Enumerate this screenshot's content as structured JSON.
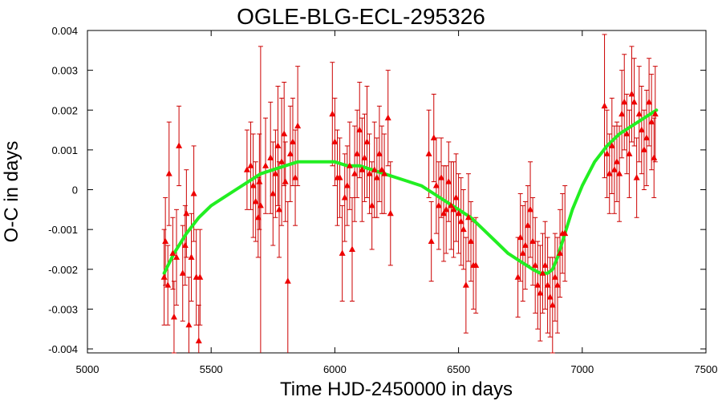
{
  "chart_data": {
    "type": "scatter",
    "title": "OGLE-BLG-ECL-295326",
    "xlabel": "Time HJD-2450000 in days",
    "ylabel": "O-C in days",
    "xlim": [
      5000,
      7500
    ],
    "ylim": [
      -0.0041,
      0.004
    ],
    "xticks": [
      5000,
      5500,
      6000,
      6500,
      7000,
      7500
    ],
    "xtick_labels": [
      "5000",
      "5500",
      "6000",
      "6500",
      "7000",
      "7500"
    ],
    "yticks": [
      -0.004,
      -0.003,
      -0.002,
      -0.001,
      0,
      0.001,
      0.002,
      0.003,
      0.004
    ],
    "ytick_labels": [
      "-0.004",
      "-0.003",
      "-0.002",
      "-0.001",
      "0",
      "0.001",
      "0.002",
      "0.003",
      "0.004"
    ],
    "grid": false,
    "colors": {
      "points": "#ee0000",
      "errorbars": "#cc0000",
      "fit": "#22ee22",
      "frame": "#000000"
    },
    "series": [
      {
        "kind": "points_with_errorbars",
        "points": [
          {
            "x": 5310,
            "y": -0.0022,
            "err": 0.0012
          },
          {
            "x": 5315,
            "y": -0.0013,
            "err": 0.0011
          },
          {
            "x": 5325,
            "y": -0.0024,
            "err": 0.001
          },
          {
            "x": 5330,
            "y": 0.0004,
            "err": 0.0013
          },
          {
            "x": 5345,
            "y": -0.0016,
            "err": 0.0009
          },
          {
            "x": 5350,
            "y": -0.0032,
            "err": 0.0009
          },
          {
            "x": 5360,
            "y": -0.0017,
            "err": 0.0012
          },
          {
            "x": 5370,
            "y": 0.0011,
            "err": 0.001
          },
          {
            "x": 5385,
            "y": -0.0021,
            "err": 0.0012
          },
          {
            "x": 5395,
            "y": -0.0014,
            "err": 0.001
          },
          {
            "x": 5400,
            "y": -0.0006,
            "err": 0.0011
          },
          {
            "x": 5410,
            "y": -0.0034,
            "err": 0.0012
          },
          {
            "x": 5420,
            "y": -0.0017,
            "err": 0.0011
          },
          {
            "x": 5430,
            "y": -0.0001,
            "err": 0.0012
          },
          {
            "x": 5440,
            "y": -0.0022,
            "err": 0.0012
          },
          {
            "x": 5450,
            "y": -0.0038,
            "err": 0.0009
          },
          {
            "x": 5455,
            "y": -0.0022,
            "err": 0.0012
          },
          {
            "x": 5645,
            "y": 0.0005,
            "err": 0.001
          },
          {
            "x": 5660,
            "y": 0.0006,
            "err": 0.0011
          },
          {
            "x": 5670,
            "y": 0.0001,
            "err": 0.0013
          },
          {
            "x": 5680,
            "y": -0.0003,
            "err": 0.001
          },
          {
            "x": 5690,
            "y": -0.0007,
            "err": 0.001
          },
          {
            "x": 5695,
            "y": 0.0002,
            "err": 0.0012
          },
          {
            "x": 5700,
            "y": -0.0004,
            "err": 0.004
          },
          {
            "x": 5720,
            "y": 0.0006,
            "err": 0.0012
          },
          {
            "x": 5740,
            "y": 0.0008,
            "err": 0.0014
          },
          {
            "x": 5750,
            "y": -0.0001,
            "err": 0.0013
          },
          {
            "x": 5760,
            "y": 0.0004,
            "err": 0.0011
          },
          {
            "x": 5770,
            "y": 0.0011,
            "err": 0.0015
          },
          {
            "x": 5775,
            "y": -0.0005,
            "err": 0.0012
          },
          {
            "x": 5785,
            "y": 0.0007,
            "err": 0.0016
          },
          {
            "x": 5795,
            "y": 0.0014,
            "err": 0.0013
          },
          {
            "x": 5800,
            "y": 0.0002,
            "err": 0.001
          },
          {
            "x": 5810,
            "y": -0.0023,
            "err": 0.002
          },
          {
            "x": 5820,
            "y": 0.0009,
            "err": 0.0012
          },
          {
            "x": 5830,
            "y": 0.0012,
            "err": 0.0011
          },
          {
            "x": 5840,
            "y": 0.0003,
            "err": 0.0012
          },
          {
            "x": 5850,
            "y": 0.0016,
            "err": 0.0015
          },
          {
            "x": 5990,
            "y": 0.0019,
            "err": 0.0013
          },
          {
            "x": 6000,
            "y": 0.0012,
            "err": 0.0011
          },
          {
            "x": 6010,
            "y": 0.0003,
            "err": 0.0012
          },
          {
            "x": 6020,
            "y": 0.0003,
            "err": 0.001
          },
          {
            "x": 6030,
            "y": -0.0016,
            "err": 0.0012
          },
          {
            "x": 6040,
            "y": -0.0002,
            "err": 0.0011
          },
          {
            "x": 6050,
            "y": 0.0001,
            "err": 0.001
          },
          {
            "x": 6060,
            "y": 0.0006,
            "err": 0.0011
          },
          {
            "x": 6070,
            "y": -0.0015,
            "err": 0.0013
          },
          {
            "x": 6080,
            "y": 0.0004,
            "err": 0.0012
          },
          {
            "x": 6090,
            "y": 0.0009,
            "err": 0.0011
          },
          {
            "x": 6100,
            "y": 0.0015,
            "err": 0.0012
          },
          {
            "x": 6110,
            "y": 0.0005,
            "err": 0.0013
          },
          {
            "x": 6120,
            "y": 0.0008,
            "err": 0.0011
          },
          {
            "x": 6130,
            "y": 0.0012,
            "err": 0.0014
          },
          {
            "x": 6140,
            "y": 0.0004,
            "err": 0.001
          },
          {
            "x": 6150,
            "y": -0.0004,
            "err": 0.0011
          },
          {
            "x": 6160,
            "y": 0.0005,
            "err": 0.0012
          },
          {
            "x": 6170,
            "y": 0.0003,
            "err": 0.001
          },
          {
            "x": 6180,
            "y": 0.0009,
            "err": 0.0012
          },
          {
            "x": 6190,
            "y": 0.0005,
            "err": 0.0011
          },
          {
            "x": 6200,
            "y": 0.0004,
            "err": 0.001
          },
          {
            "x": 6215,
            "y": 0.0018,
            "err": 0.0012
          },
          {
            "x": 6225,
            "y": -0.0006,
            "err": 0.0013
          },
          {
            "x": 6380,
            "y": 0.0009,
            "err": 0.0011
          },
          {
            "x": 6390,
            "y": -0.0013,
            "err": 0.001
          },
          {
            "x": 6400,
            "y": 0.0013,
            "err": 0.0011
          },
          {
            "x": 6410,
            "y": 0.0001,
            "err": 0.0012
          },
          {
            "x": 6420,
            "y": -0.0004,
            "err": 0.0011
          },
          {
            "x": 6430,
            "y": 0.0003,
            "err": 0.001
          },
          {
            "x": 6440,
            "y": -0.0006,
            "err": 0.0012
          },
          {
            "x": 6450,
            "y": -0.0005,
            "err": 0.0011
          },
          {
            "x": 6460,
            "y": 0.0002,
            "err": 0.001
          },
          {
            "x": 6470,
            "y": -0.0004,
            "err": 0.0011
          },
          {
            "x": 6480,
            "y": -0.0005,
            "err": 0.0012
          },
          {
            "x": 6490,
            "y": -0.0002,
            "err": 0.0011
          },
          {
            "x": 6500,
            "y": -0.0006,
            "err": 0.001
          },
          {
            "x": 6510,
            "y": -0.0008,
            "err": 0.0011
          },
          {
            "x": 6520,
            "y": -0.001,
            "err": 0.001
          },
          {
            "x": 6530,
            "y": -0.0024,
            "err": 0.0012
          },
          {
            "x": 6540,
            "y": -0.0007,
            "err": 0.0011
          },
          {
            "x": 6550,
            "y": -0.0013,
            "err": 0.001
          },
          {
            "x": 6560,
            "y": -0.0019,
            "err": 0.0011
          },
          {
            "x": 6570,
            "y": -0.0019,
            "err": 0.0012
          },
          {
            "x": 6740,
            "y": -0.0022,
            "err": 0.001
          },
          {
            "x": 6750,
            "y": -0.0012,
            "err": 0.0011
          },
          {
            "x": 6760,
            "y": -0.0016,
            "err": 0.0012
          },
          {
            "x": 6770,
            "y": -0.0014,
            "err": 0.0011
          },
          {
            "x": 6780,
            "y": -0.0009,
            "err": 0.001
          },
          {
            "x": 6790,
            "y": -0.0005,
            "err": 0.0012
          },
          {
            "x": 6800,
            "y": -0.0013,
            "err": 0.0011
          },
          {
            "x": 6810,
            "y": -0.0019,
            "err": 0.0012
          },
          {
            "x": 6820,
            "y": -0.0024,
            "err": 0.0011
          },
          {
            "x": 6830,
            "y": -0.0026,
            "err": 0.0012
          },
          {
            "x": 6840,
            "y": -0.0021,
            "err": 0.001
          },
          {
            "x": 6850,
            "y": -0.0019,
            "err": 0.0011
          },
          {
            "x": 6860,
            "y": -0.0024,
            "err": 0.0012
          },
          {
            "x": 6870,
            "y": -0.0027,
            "err": 0.001
          },
          {
            "x": 6880,
            "y": -0.0029,
            "err": 0.0012
          },
          {
            "x": 6890,
            "y": -0.0022,
            "err": 0.0011
          },
          {
            "x": 6900,
            "y": -0.0024,
            "err": 0.0012
          },
          {
            "x": 6910,
            "y": -0.0016,
            "err": 0.0011
          },
          {
            "x": 6920,
            "y": -0.0011,
            "err": 0.001
          },
          {
            "x": 6930,
            "y": -0.0011,
            "err": 0.0012
          },
          {
            "x": 7090,
            "y": 0.0021,
            "err": 0.0018
          },
          {
            "x": 7100,
            "y": 0.0009,
            "err": 0.0011
          },
          {
            "x": 7110,
            "y": 0.0004,
            "err": 0.001
          },
          {
            "x": 7120,
            "y": 0.0011,
            "err": 0.0012
          },
          {
            "x": 7130,
            "y": 0.0005,
            "err": 0.0011
          },
          {
            "x": 7140,
            "y": 0.0007,
            "err": 0.001
          },
          {
            "x": 7150,
            "y": 0.0004,
            "err": 0.0012
          },
          {
            "x": 7160,
            "y": 0.0019,
            "err": 0.0011
          },
          {
            "x": 7170,
            "y": 0.0022,
            "err": 0.0012
          },
          {
            "x": 7180,
            "y": 0.0014,
            "err": 0.001
          },
          {
            "x": 7190,
            "y": 0.0009,
            "err": 0.0011
          },
          {
            "x": 7200,
            "y": 0.0024,
            "err": 0.0012
          },
          {
            "x": 7210,
            "y": 0.0022,
            "err": 0.0011
          },
          {
            "x": 7220,
            "y": 0.0003,
            "err": 0.001
          },
          {
            "x": 7230,
            "y": 0.0019,
            "err": 0.0012
          },
          {
            "x": 7240,
            "y": 0.0015,
            "err": 0.0011
          },
          {
            "x": 7250,
            "y": 0.001,
            "err": 0.001
          },
          {
            "x": 7260,
            "y": 0.0013,
            "err": 0.0012
          },
          {
            "x": 7270,
            "y": 0.0022,
            "err": 0.0011
          },
          {
            "x": 7280,
            "y": 0.0017,
            "err": 0.0012
          },
          {
            "x": 7290,
            "y": 0.0008,
            "err": 0.001
          },
          {
            "x": 7295,
            "y": 0.0019,
            "err": 0.0012
          }
        ]
      },
      {
        "kind": "fit_curve",
        "x": [
          5310,
          5350,
          5400,
          5450,
          5500,
          5550,
          5600,
          5650,
          5700,
          5750,
          5800,
          5850,
          5900,
          5950,
          6000,
          6050,
          6100,
          6150,
          6200,
          6250,
          6300,
          6350,
          6400,
          6450,
          6500,
          6550,
          6600,
          6650,
          6700,
          6750,
          6800,
          6830,
          6860,
          6880,
          6900,
          6930,
          6960,
          7000,
          7050,
          7100,
          7150,
          7200,
          7250,
          7300
        ],
        "y": [
          -0.0021,
          -0.0016,
          -0.0011,
          -0.0007,
          -0.0004,
          -0.0002,
          0.0,
          0.0002,
          0.0004,
          0.0005,
          0.0006,
          0.0007,
          0.0007,
          0.0007,
          0.0007,
          0.0006,
          0.0006,
          0.0005,
          0.0004,
          0.0003,
          0.0002,
          0.0001,
          -0.0001,
          -0.0003,
          -0.0005,
          -0.0007,
          -0.001,
          -0.0013,
          -0.0016,
          -0.0018,
          -0.002,
          -0.0021,
          -0.0021,
          -0.002,
          -0.0017,
          -0.0011,
          -0.0005,
          0.0001,
          0.0007,
          0.0011,
          0.0014,
          0.0016,
          0.0018,
          0.002
        ]
      }
    ]
  }
}
